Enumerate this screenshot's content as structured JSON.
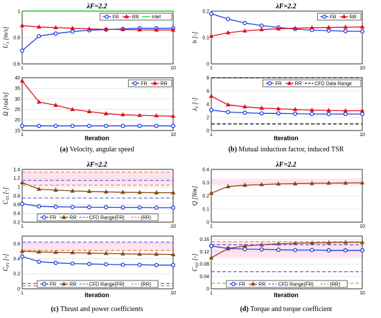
{
  "chart_data": [
    {
      "id": "a1",
      "type": "line",
      "ylabel": "U_1 [m/s]",
      "title": "λF=2.2",
      "xlim": [
        1,
        10
      ],
      "ylim": [
        0.6,
        1.0
      ],
      "yticks": [
        "1",
        "0.8",
        "0.6"
      ],
      "xticks": [
        "1",
        "10"
      ],
      "legend": "top-right",
      "series": [
        {
          "name": "FR",
          "color": "#1f3fe0",
          "marker": "circle",
          "dash": "",
          "x": [
            1,
            2,
            3,
            4,
            5,
            6,
            7,
            8,
            9,
            10
          ],
          "y": [
            0.7,
            0.81,
            0.83,
            0.845,
            0.855,
            0.86,
            0.865,
            0.87,
            0.87,
            0.87
          ]
        },
        {
          "name": "RR",
          "color": "#e01020",
          "marker": "triangle",
          "dash": "",
          "x": [
            1,
            2,
            3,
            4,
            5,
            6,
            7,
            8,
            9,
            10
          ],
          "y": [
            0.89,
            0.88,
            0.875,
            0.87,
            0.865,
            0.862,
            0.86,
            0.858,
            0.857,
            0.857
          ]
        },
        {
          "name": "Inlet",
          "color": "#22cc22",
          "marker": "none",
          "dash": "",
          "x": [
            1,
            10
          ],
          "y": [
            1.0,
            1.0
          ]
        }
      ]
    },
    {
      "id": "a2",
      "type": "line",
      "ylabel": "Ω [rad/s]",
      "xlim": [
        1,
        10
      ],
      "ylim": [
        15,
        40
      ],
      "yticks": [
        "40",
        "35",
        "30",
        "25",
        "20",
        "15"
      ],
      "xticks": [
        "1",
        "10"
      ],
      "legend": "top-right",
      "series": [
        {
          "name": "FR",
          "color": "#1f3fe0",
          "marker": "circle",
          "dash": "",
          "x": [
            1,
            2,
            3,
            4,
            5,
            6,
            7,
            8,
            9,
            10
          ],
          "y": [
            17.2,
            17.2,
            17.2,
            17.2,
            17.2,
            17.2,
            17.2,
            17.2,
            17.2,
            17.2
          ]
        },
        {
          "name": "RR",
          "color": "#e01020",
          "marker": "triangle",
          "dash": "",
          "x": [
            1,
            2,
            3,
            4,
            5,
            6,
            7,
            8,
            9,
            10
          ],
          "y": [
            38.5,
            28.5,
            27.0,
            25.0,
            24.0,
            23.0,
            22.5,
            22.2,
            22.0,
            21.8
          ]
        }
      ]
    },
    {
      "id": "b1",
      "type": "line",
      "ylabel": "b [-]",
      "title": "λF=2.2",
      "xlim": [
        1,
        10
      ],
      "ylim": [
        0,
        0.2
      ],
      "yticks": [
        "0.2",
        "0.1",
        "0"
      ],
      "xticks": [
        "1",
        "10"
      ],
      "legend": "top-right",
      "series": [
        {
          "name": "FR",
          "color": "#1f3fe0",
          "marker": "circle",
          "dash": "",
          "x": [
            1,
            2,
            3,
            4,
            5,
            6,
            7,
            8,
            9,
            10
          ],
          "y": [
            0.19,
            0.17,
            0.155,
            0.145,
            0.138,
            0.132,
            0.128,
            0.126,
            0.124,
            0.123
          ]
        },
        {
          "name": "RR",
          "color": "#e01020",
          "marker": "triangle",
          "dash": "",
          "x": [
            1,
            2,
            3,
            4,
            5,
            6,
            7,
            8,
            9,
            10
          ],
          "y": [
            0.105,
            0.118,
            0.125,
            0.13,
            0.133,
            0.135,
            0.137,
            0.138,
            0.139,
            0.14
          ]
        }
      ]
    },
    {
      "id": "b2",
      "type": "line",
      "ylabel": "λ1 [-]",
      "xlim": [
        1,
        10
      ],
      "ylim": [
        0,
        8
      ],
      "yticks": [
        "8",
        "6",
        "4",
        "2",
        "0"
      ],
      "xticks": [
        "1",
        "10"
      ],
      "legend": "top-right",
      "series": [
        {
          "name": "FR",
          "color": "#1f3fe0",
          "marker": "circle",
          "dash": "",
          "x": [
            1,
            2,
            3,
            4,
            5,
            6,
            7,
            8,
            9,
            10
          ],
          "y": [
            3.1,
            2.8,
            2.7,
            2.6,
            2.6,
            2.55,
            2.5,
            2.5,
            2.5,
            2.5
          ]
        },
        {
          "name": "RR",
          "color": "#e01020",
          "marker": "triangle",
          "dash": "",
          "x": [
            1,
            2,
            3,
            4,
            5,
            6,
            7,
            8,
            9,
            10
          ],
          "y": [
            5.2,
            3.9,
            3.6,
            3.4,
            3.3,
            3.2,
            3.1,
            3.05,
            3.0,
            3.0
          ]
        },
        {
          "name": "CFD Data Range",
          "color": "#000000",
          "marker": "none",
          "dash": "5,3",
          "x": [
            1,
            10
          ],
          "y": [
            8,
            8
          ]
        },
        {
          "name": "",
          "color": "#000000",
          "marker": "none",
          "dash": "5,3",
          "x": [
            1,
            10
          ],
          "y": [
            1.0,
            1.0
          ]
        }
      ]
    },
    {
      "id": "c1",
      "type": "line",
      "ylabel": "C_T1 [-]",
      "title": "λF=2.2",
      "xlim": [
        1,
        10
      ],
      "ylim": [
        0.2,
        1.4
      ],
      "yticks": [
        "1.4",
        "1.2",
        "1",
        "0.8",
        "0.6",
        "0.4",
        "0.2"
      ],
      "xticks": [
        "1",
        "10"
      ],
      "legend": "bottom-center",
      "band": [
        1.04,
        1.34
      ],
      "bandColor": "#ffd8e8",
      "series": [
        {
          "name": "FR",
          "color": "#1f3fe0",
          "marker": "circle",
          "dash": "",
          "x": [
            1,
            2,
            3,
            4,
            5,
            6,
            7,
            8,
            9,
            10
          ],
          "y": [
            0.62,
            0.56,
            0.55,
            0.545,
            0.54,
            0.54,
            0.535,
            0.535,
            0.53,
            0.53
          ]
        },
        {
          "name": "RR",
          "color": "#8b4513",
          "marker": "triangle",
          "dash": "",
          "x": [
            1,
            2,
            3,
            4,
            5,
            6,
            7,
            8,
            9,
            10
          ],
          "y": [
            1.1,
            0.95,
            0.93,
            0.91,
            0.9,
            0.89,
            0.88,
            0.875,
            0.87,
            0.87
          ]
        },
        {
          "name": "CFD Range(FR)",
          "color": "#5a5ae0",
          "marker": "none",
          "dash": "5,3",
          "x": [
            1,
            10
          ],
          "y": [
            0.75,
            0.75
          ]
        },
        {
          "name": "",
          "color": "#5a5ae0",
          "marker": "none",
          "dash": "5,3",
          "x": [
            1,
            10
          ],
          "y": [
            1.15,
            1.15
          ]
        },
        {
          "name": "(RR)",
          "color": "#e08040",
          "marker": "none",
          "dash": "5,3",
          "x": [
            1,
            10
          ],
          "y": [
            1.34,
            1.34
          ]
        },
        {
          "name": "",
          "color": "#e08040",
          "marker": "none",
          "dash": "5,3",
          "x": [
            1,
            10
          ],
          "y": [
            1.04,
            1.04
          ]
        }
      ]
    },
    {
      "id": "c2",
      "type": "line",
      "ylabel": "C_P1 [-]",
      "xlim": [
        1,
        10
      ],
      "ylim": [
        0,
        0.7
      ],
      "yticks": [
        "0.6",
        "0.4",
        "0.2",
        "0"
      ],
      "xticks": [
        "1",
        "10"
      ],
      "legend": "bottom-center",
      "band": [
        0.51,
        0.62
      ],
      "bandColor": "#ffd8e8",
      "series": [
        {
          "name": "FR",
          "color": "#1f3fe0",
          "marker": "circle",
          "dash": "",
          "x": [
            1,
            2,
            3,
            4,
            5,
            6,
            7,
            8,
            9,
            10
          ],
          "y": [
            0.43,
            0.36,
            0.345,
            0.335,
            0.33,
            0.325,
            0.32,
            0.32,
            0.315,
            0.315
          ]
        },
        {
          "name": "RR",
          "color": "#8b4513",
          "marker": "triangle",
          "dash": "",
          "x": [
            1,
            2,
            3,
            4,
            5,
            6,
            7,
            8,
            9,
            10
          ],
          "y": [
            0.5,
            0.49,
            0.485,
            0.48,
            0.475,
            0.47,
            0.465,
            0.46,
            0.46,
            0.455
          ]
        },
        {
          "name": "CFD Range(FR)",
          "color": "#5a5ae0",
          "marker": "none",
          "dash": "5,3",
          "x": [
            1,
            10
          ],
          "y": [
            0.62,
            0.62
          ]
        },
        {
          "name": "",
          "color": "#5a5ae0",
          "marker": "none",
          "dash": "5,3",
          "x": [
            1,
            10
          ],
          "y": [
            0.07,
            0.07
          ]
        },
        {
          "name": "(RR)",
          "color": "#e08040",
          "marker": "none",
          "dash": "5,3",
          "x": [
            1,
            10
          ],
          "y": [
            0.51,
            0.51
          ]
        },
        {
          "name": "",
          "color": "#e08040",
          "marker": "none",
          "dash": "5,3",
          "x": [
            1,
            10
          ],
          "y": [
            0.04,
            0.04
          ]
        }
      ]
    },
    {
      "id": "d1",
      "type": "line",
      "ylabel": "Q [Nm]",
      "title": "λF=2.2",
      "xlim": [
        1,
        10
      ],
      "ylim": [
        0,
        0.4
      ],
      "yticks": [
        "0.4",
        "0.3",
        "0.2",
        "0.1",
        "0"
      ],
      "xticks": [
        "1",
        "10"
      ],
      "legend": "none",
      "band": [
        0.28,
        0.33
      ],
      "bandColor": "#ffd8e8",
      "series": [
        {
          "name": "RR",
          "color": "#8b4513",
          "marker": "triangle",
          "dash": "",
          "x": [
            1,
            2,
            3,
            4,
            5,
            6,
            7,
            8,
            9,
            10
          ],
          "y": [
            0.22,
            0.27,
            0.28,
            0.285,
            0.29,
            0.292,
            0.294,
            0.296,
            0.297,
            0.298
          ]
        }
      ]
    },
    {
      "id": "d2",
      "type": "line",
      "ylabel": "C_Q1 [-]",
      "xlim": [
        1,
        10
      ],
      "ylim": [
        0,
        0.17
      ],
      "yticks": [
        "0.16",
        "0.12",
        "0.08",
        "0.04",
        "0"
      ],
      "xticks": [
        "1",
        "10"
      ],
      "legend": "bottom-center",
      "band": [
        0.1,
        0.152
      ],
      "bandColor": "#ffd8e8",
      "series": [
        {
          "name": "FR",
          "color": "#1f3fe0",
          "marker": "circle",
          "dash": "",
          "x": [
            1,
            2,
            3,
            4,
            5,
            6,
            7,
            8,
            9,
            10
          ],
          "y": [
            0.138,
            0.13,
            0.128,
            0.127,
            0.126,
            0.125,
            0.125,
            0.124,
            0.124,
            0.124
          ]
        },
        {
          "name": "RR",
          "color": "#8b4513",
          "marker": "triangle",
          "dash": "",
          "x": [
            1,
            2,
            3,
            4,
            5,
            6,
            7,
            8,
            9,
            10
          ],
          "y": [
            0.1,
            0.13,
            0.138,
            0.142,
            0.145,
            0.147,
            0.148,
            0.149,
            0.15,
            0.15
          ]
        },
        {
          "name": "CFD Range(FR)",
          "color": "#5a5ae0",
          "marker": "none",
          "dash": "5,3",
          "x": [
            1,
            10
          ],
          "y": [
            0.142,
            0.142
          ]
        },
        {
          "name": "",
          "color": "#5a5ae0",
          "marker": "none",
          "dash": "5,3",
          "x": [
            1,
            10
          ],
          "y": [
            0.055,
            0.055
          ]
        },
        {
          "name": "(RR)",
          "color": "#e08040",
          "marker": "none",
          "dash": "5,3",
          "x": [
            1,
            10
          ],
          "y": [
            0.152,
            0.152
          ]
        },
        {
          "name": "",
          "color": "#e08040",
          "marker": "none",
          "dash": "5,3",
          "x": [
            1,
            10
          ],
          "y": [
            0.018,
            0.018
          ]
        }
      ]
    }
  ],
  "captions": {
    "a": {
      "letter": "(a)",
      "text": " Velocity, angular speed"
    },
    "b": {
      "letter": "(b)",
      "text": " Mutual induction factor, induced TSR"
    },
    "c": {
      "letter": "(c)",
      "text": " Thrust and power coefficients"
    },
    "d": {
      "letter": "(d)",
      "text": " Torque and torque coefficient"
    }
  },
  "xlabel": "Iteration",
  "lambda_title": "λF=2.2"
}
